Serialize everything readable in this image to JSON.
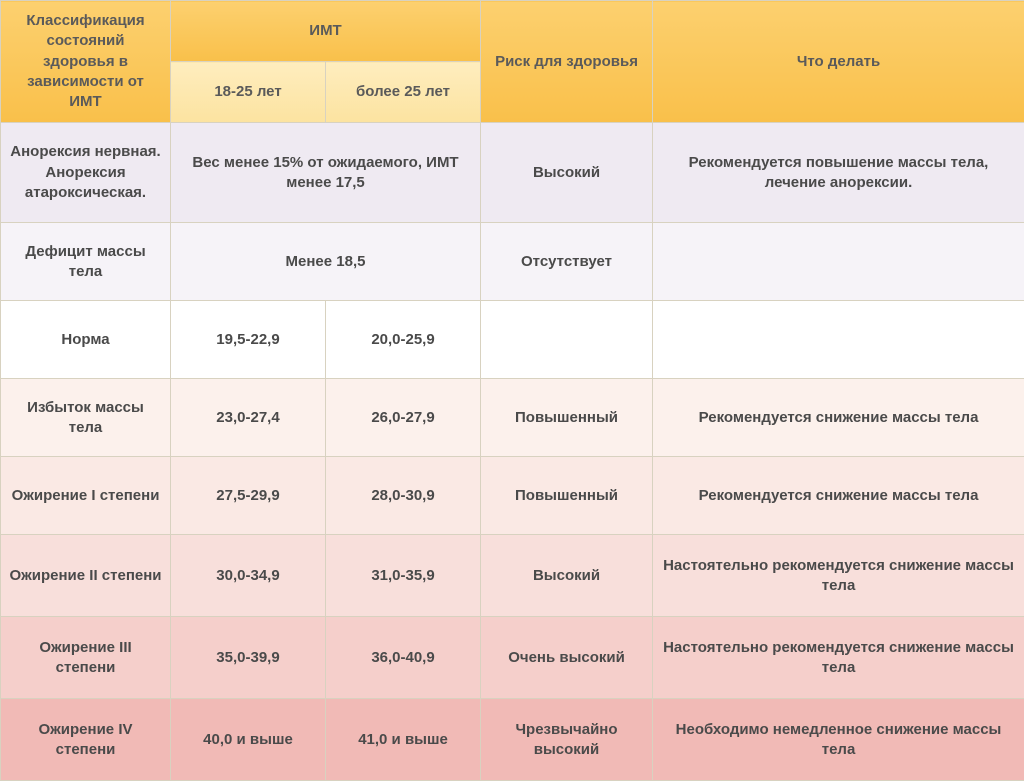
{
  "header": {
    "col_class": "Классификация состояний здоровья в зависимости от ИМТ",
    "col_bmi": "ИМТ",
    "col_age1": "18-25 лет",
    "col_age2": "более 25 лет",
    "col_risk": "Риск для здоровья",
    "col_action": "Что делать"
  },
  "rows": [
    {
      "class": "Анорексия нервная. Анорексия атароксическая.",
      "bmi_merged": "Вес менее 15% от ожидаемого, ИМТ менее 17,5",
      "risk": "Высокий",
      "action": "Рекомендуется повышение массы тела, лечение анорексии.",
      "bg": "#efeaf2",
      "height": 100
    },
    {
      "class": "Дефицит массы тела",
      "bmi_merged": "Менее 18,5",
      "risk": "Отсутствует",
      "action": "",
      "bg": "#f6f3f8",
      "height": 78
    },
    {
      "class": "Норма",
      "bmi1": "19,5-22,9",
      "bmi2": "20,0-25,9",
      "risk": "",
      "action": "",
      "bg": "#ffffff",
      "height": 78
    },
    {
      "class": "Избыток массы тела",
      "bmi1": "23,0-27,4",
      "bmi2": "26,0-27,9",
      "risk": "Повышенный",
      "action": "Рекомендуется снижение массы тела",
      "bg": "#fcf1ec",
      "height": 78
    },
    {
      "class": "Ожирение I степени",
      "bmi1": "27,5-29,9",
      "bmi2": "28,0-30,9",
      "risk": "Повышенный",
      "action": "Рекомендуется снижение массы тела",
      "bg": "#fae9e4",
      "height": 78
    },
    {
      "class": "Ожирение II степени",
      "bmi1": "30,0-34,9",
      "bmi2": "31,0-35,9",
      "risk": "Высокий",
      "action": "Настоятельно рекомендуется снижение массы тела",
      "bg": "#f8dfdb",
      "height": 82
    },
    {
      "class": "Ожирение III степени",
      "bmi1": "35,0-39,9",
      "bmi2": "36,0-40,9",
      "risk": "Очень высокий",
      "action": "Настоятельно рекомендуется снижение массы тела",
      "bg": "#f5cfcb",
      "height": 82
    },
    {
      "class": "Ожирение IV степени",
      "bmi1": "40,0 и выше",
      "bmi2": "41,0 и выше",
      "risk": "Чрезвычайно высокий",
      "action": "Необходимо немедленное снижение массы тела",
      "bg": "#f1bab6",
      "height": 82
    }
  ]
}
